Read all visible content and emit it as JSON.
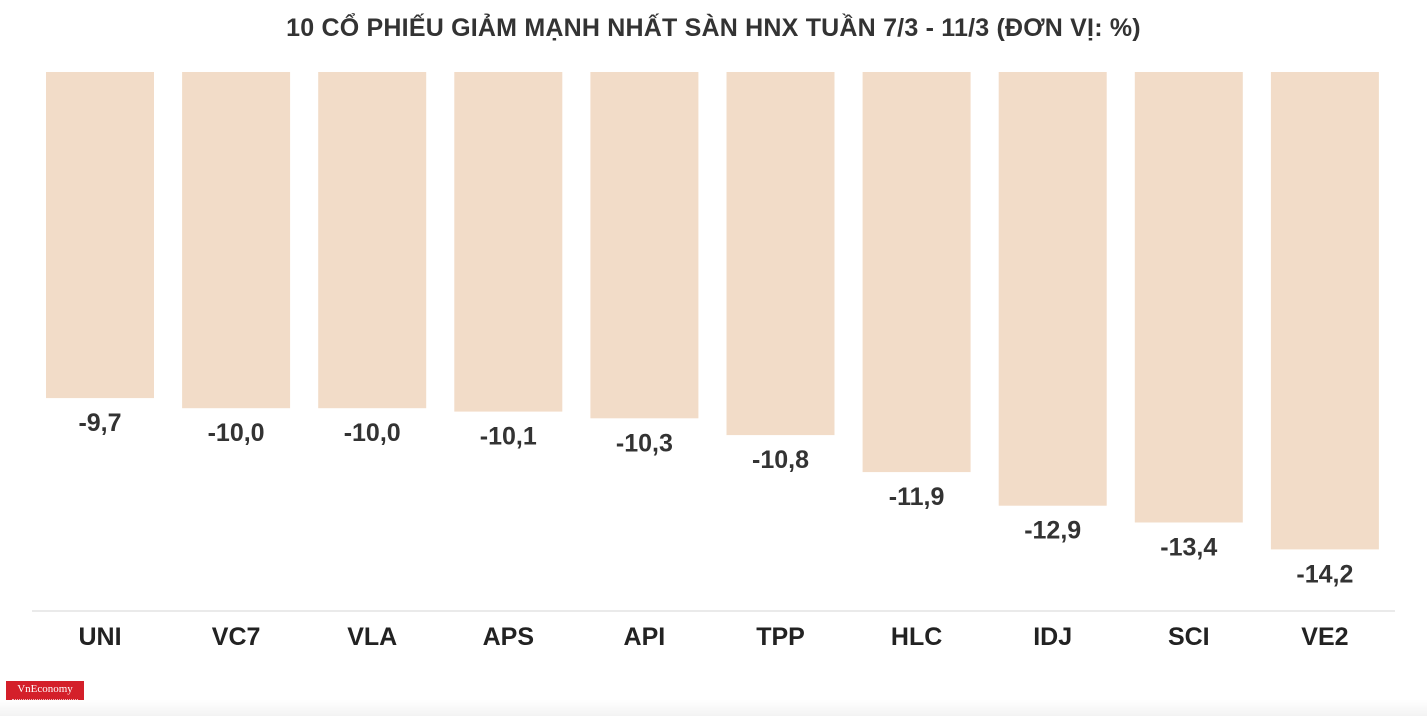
{
  "title": "10 CỔ PHIẾU GIẢM MẠNH NHẤT SÀN HNX TUẦN 7/3 - 11/3 (ĐƠN VỊ: %)",
  "logo_text": "VnEconomy",
  "colors": {
    "bar": "#f2dcc8",
    "label": "#333333",
    "logo": "#d4202a"
  },
  "chart_data": {
    "type": "bar",
    "title": "10 CỔ PHIẾU GIẢM MẠNH NHẤT SÀN HNX TUẦN 7/3 - 11/3 (ĐƠN VỊ: %)",
    "categories": [
      "UNI",
      "VC7",
      "VLA",
      "APS",
      "API",
      "TPP",
      "HLC",
      "IDJ",
      "SCI",
      "VE2"
    ],
    "values": [
      -9.7,
      -10.0,
      -10.0,
      -10.1,
      -10.3,
      -10.8,
      -11.9,
      -12.9,
      -13.4,
      -14.2
    ],
    "value_labels": [
      "-9,7",
      "-10,0",
      "-10,0",
      "-10,1",
      "-10,3",
      "-10,8",
      "-11,9",
      "-12,9",
      "-13,4",
      "-14,2"
    ],
    "xlabel": "",
    "ylabel": "",
    "ylim": [
      -16,
      0
    ],
    "grid": false,
    "legend": "none"
  }
}
